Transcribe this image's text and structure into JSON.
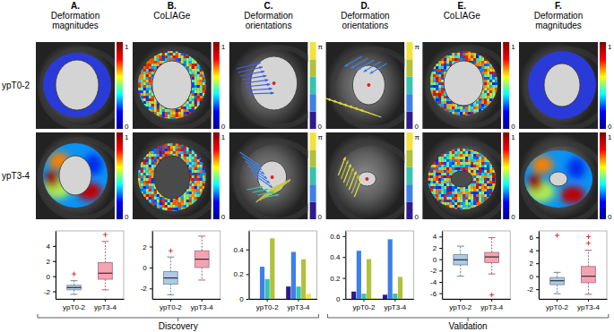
{
  "panels": {
    "columns": [
      {
        "letter": "A.",
        "title": [
          "Deformation",
          "magnitudes"
        ],
        "colorbar": {
          "range": [
            0,
            1
          ],
          "ticks": [
            0,
            1
          ]
        }
      },
      {
        "letter": "B.",
        "title": [
          "CoLIAGe"
        ],
        "colorbar": {
          "range": [
            0,
            1
          ],
          "ticks": [
            0,
            1
          ]
        }
      },
      {
        "letter": "C.",
        "title": [
          "Deformation",
          "orientations"
        ],
        "colorbar": {
          "range": [
            0,
            3.1416
          ],
          "ticks": [
            0,
            {
              "value": 3.1416,
              "label": "π"
            }
          ],
          "colors": [
            "#2f1b8c",
            "#3f7fe8",
            "#39c2b0",
            "#b0c23a",
            "#f0e33c"
          ]
        }
      },
      {
        "letter": "D.",
        "title": [
          "Deformation",
          "orientations"
        ],
        "colorbar": {
          "range": [
            0,
            3.1416
          ],
          "ticks": [
            0,
            {
              "value": 3.1416,
              "label": "π"
            }
          ],
          "colors": [
            "#2f1b8c",
            "#3f7fe8",
            "#39c2b0",
            "#b0c23a",
            "#f0e33c"
          ]
        }
      },
      {
        "letter": "E.",
        "title": [
          "CoLIAGe"
        ],
        "colorbar": {
          "range": [
            0,
            1
          ],
          "ticks": [
            0,
            1
          ]
        }
      },
      {
        "letter": "F.",
        "title": [
          "Deformation",
          "magnitudes"
        ],
        "colorbar": {
          "range": [
            0,
            1
          ],
          "ticks": [
            0,
            1
          ]
        }
      }
    ],
    "rows": [
      "ypT0-2",
      "ypT3-4"
    ]
  },
  "groups": [
    "Discovery",
    "Validation"
  ],
  "chart_data": [
    {
      "type": "box",
      "categories": [
        "ypT0-2",
        "ypT3-4"
      ],
      "colors": [
        "#aecbe6",
        "#f4a3b5"
      ],
      "ylim": [
        -3,
        6
      ],
      "yticks": [
        -2,
        0,
        2,
        4
      ],
      "boxes": [
        {
          "min": -2.4,
          "q1": -1.8,
          "median": -1.5,
          "q3": -1.2,
          "max": -0.6,
          "outliers": [
            0.3
          ]
        },
        {
          "min": -1.8,
          "q1": -0.4,
          "median": 0.4,
          "q3": 1.8,
          "max": 4.6,
          "outliers": [
            5.5
          ]
        }
      ]
    },
    {
      "type": "box",
      "categories": [
        "ypT0-2",
        "ypT3-4"
      ],
      "colors": [
        "#aecbe6",
        "#f4a3b5"
      ],
      "ylim": [
        -3,
        3.5
      ],
      "yticks": [
        -2,
        0,
        2
      ],
      "boxes": [
        {
          "min": -2.6,
          "q1": -1.6,
          "median": -1.0,
          "q3": -0.4,
          "max": 1.0,
          "outliers": [
            1.6
          ]
        },
        {
          "min": -1.2,
          "q1": 0.0,
          "median": 0.8,
          "q3": 1.6,
          "max": 3.0,
          "outliers": []
        }
      ]
    },
    {
      "type": "bar",
      "categories": [
        "ypT0-2",
        "ypT3-4"
      ],
      "ylim": [
        0,
        0.55
      ],
      "yticks": [
        0,
        0.2,
        0.4
      ],
      "series": [
        {
          "color": "#2f1b8c",
          "values": [
            0,
            0.1
          ]
        },
        {
          "color": "#3f7fe8",
          "values": [
            0.26,
            0.38
          ]
        },
        {
          "color": "#39c2b0",
          "values": [
            0.16,
            0.1
          ]
        },
        {
          "color": "#b0c23a",
          "values": [
            0.49,
            0.32
          ]
        },
        {
          "color": "#f0e33c",
          "values": [
            0,
            0.04
          ]
        }
      ]
    },
    {
      "type": "bar",
      "categories": [
        "ypT0-2",
        "ypT3-4"
      ],
      "ylim": [
        0,
        0.65
      ],
      "yticks": [
        0,
        0.2,
        0.4,
        0.6
      ],
      "series": [
        {
          "color": "#2f1b8c",
          "values": [
            0.07,
            0.04
          ]
        },
        {
          "color": "#3f7fe8",
          "values": [
            0.46,
            0.57
          ]
        },
        {
          "color": "#39c2b0",
          "values": [
            0.05,
            0.05
          ]
        },
        {
          "color": "#b0c23a",
          "values": [
            0.38,
            0.21
          ]
        },
        {
          "color": "#f0e33c",
          "values": [
            0.01,
            0
          ]
        }
      ]
    },
    {
      "type": "box",
      "categories": [
        "ypT0-2",
        "ypT3-4"
      ],
      "colors": [
        "#aecbe6",
        "#f4a3b5"
      ],
      "ylim": [
        -7,
        5
      ],
      "yticks": [
        -6,
        -4,
        -2,
        0,
        2,
        4
      ],
      "boxes": [
        {
          "min": -3.0,
          "q1": -1.0,
          "median": -0.1,
          "q3": 0.8,
          "max": 2.3,
          "outliers": []
        },
        {
          "min": -2.6,
          "q1": -0.6,
          "median": 0.4,
          "q3": 1.2,
          "max": 3.8,
          "outliers": [
            -6.3
          ]
        }
      ]
    },
    {
      "type": "box",
      "categories": [
        "ypT0-2",
        "ypT3-4"
      ],
      "colors": [
        "#aecbe6",
        "#f4a3b5"
      ],
      "ylim": [
        -3.5,
        7
      ],
      "yticks": [
        -2,
        0,
        2,
        4,
        6
      ],
      "boxes": [
        {
          "min": -2.7,
          "q1": -1.3,
          "median": -0.7,
          "q3": -0.2,
          "max": 0.6,
          "outliers": [
            6.3
          ]
        },
        {
          "min": -2.8,
          "q1": -1.0,
          "median": 0.0,
          "q3": 1.5,
          "max": 4.0,
          "outliers": [
            5.1,
            6.1
          ]
        }
      ]
    }
  ]
}
